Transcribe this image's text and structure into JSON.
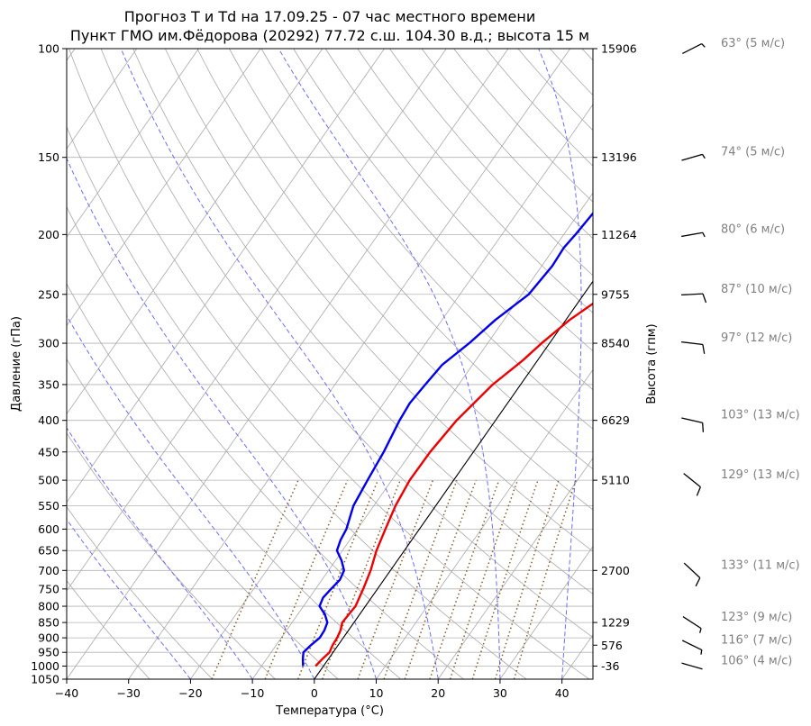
{
  "chart_data": {
    "type": "line",
    "title": "Прогноз T и Td на 17.09.25 - 07 час местного времени",
    "subtitle": "Пункт ГМО им.Фёдорова (20292) 77.72 с.ш. 104.30 в.д.; высота 15 м",
    "xlabel": "Температура (°C)",
    "ylabel": "Давление (гПа)",
    "ylabel_right": "Высота (гпм)",
    "xlim": [
      -40,
      45
    ],
    "ylim": [
      1050,
      100
    ],
    "yscale": "log",
    "x_ticks": [
      "−40",
      "−30",
      "−20",
      "−10",
      "0",
      "10",
      "20",
      "30",
      "40"
    ],
    "x_tick_values": [
      -40,
      -30,
      -20,
      -10,
      0,
      10,
      20,
      30,
      40
    ],
    "pressure_ticks": [
      100,
      150,
      200,
      250,
      300,
      350,
      400,
      450,
      500,
      550,
      600,
      650,
      700,
      750,
      800,
      850,
      900,
      950,
      1000,
      1050
    ],
    "pressure_tick_labels": [
      "100",
      "150",
      "200",
      "250",
      "300",
      "350",
      "400",
      "450",
      "500",
      "550",
      "600",
      "650",
      "700",
      "750",
      "800",
      "850",
      "900",
      "950",
      "1000",
      "1050"
    ],
    "heights": [
      {
        "p": 100,
        "label": "15906"
      },
      {
        "p": 150,
        "label": "13196"
      },
      {
        "p": 200,
        "label": "11264"
      },
      {
        "p": 250,
        "label": "9755"
      },
      {
        "p": 300,
        "label": "8540"
      },
      {
        "p": 400,
        "label": "6629"
      },
      {
        "p": 500,
        "label": "5110"
      },
      {
        "p": 700,
        "label": "2700"
      },
      {
        "p": 850,
        "label": "1229"
      },
      {
        "p": 925,
        "label": "576"
      },
      {
        "p": 1000,
        "label": "-36"
      }
    ],
    "series": [
      {
        "name": "T",
        "color": "#ee0000",
        "points": [
          [
            1000,
            -1.3
          ],
          [
            975,
            -1.0
          ],
          [
            950,
            -0.6
          ],
          [
            925,
            -0.9
          ],
          [
            900,
            -1.0
          ],
          [
            875,
            -1.3
          ],
          [
            850,
            -1.9
          ],
          [
            800,
            -1.6
          ],
          [
            750,
            -2.3
          ],
          [
            700,
            -3.2
          ],
          [
            650,
            -4.5
          ],
          [
            600,
            -5.5
          ],
          [
            550,
            -6.5
          ],
          [
            500,
            -7.1
          ],
          [
            450,
            -7.0
          ],
          [
            400,
            -6.3
          ],
          [
            350,
            -4.5
          ],
          [
            320,
            -2.4
          ],
          [
            300,
            -1.3
          ],
          [
            275,
            0.6
          ],
          [
            250,
            3.6
          ],
          [
            225,
            6.2
          ],
          [
            200,
            8.4
          ],
          [
            175,
            10.6
          ],
          [
            150,
            12.7
          ],
          [
            125,
            16.1
          ],
          [
            100,
            20.0
          ]
        ]
      },
      {
        "name": "Td",
        "color": "#0000ee",
        "points": [
          [
            1000,
            -3.3
          ],
          [
            975,
            -4.1
          ],
          [
            950,
            -4.8
          ],
          [
            925,
            -4.4
          ],
          [
            900,
            -3.8
          ],
          [
            875,
            -3.9
          ],
          [
            850,
            -4.3
          ],
          [
            825,
            -5.6
          ],
          [
            800,
            -7.4
          ],
          [
            775,
            -7.8
          ],
          [
            750,
            -7.5
          ],
          [
            725,
            -7.1
          ],
          [
            700,
            -7.5
          ],
          [
            675,
            -9.0
          ],
          [
            650,
            -10.9
          ],
          [
            625,
            -11.5
          ],
          [
            600,
            -11.8
          ],
          [
            550,
            -13.3
          ],
          [
            500,
            -13.9
          ],
          [
            450,
            -14.5
          ],
          [
            400,
            -15.5
          ],
          [
            375,
            -15.8
          ],
          [
            350,
            -15.4
          ],
          [
            325,
            -14.9
          ],
          [
            300,
            -13.0
          ],
          [
            275,
            -11.4
          ],
          [
            250,
            -8.9
          ],
          [
            225,
            -8.3
          ],
          [
            210,
            -8.5
          ],
          [
            200,
            -8.1
          ],
          [
            175,
            -7.4
          ],
          [
            150,
            -6.5
          ],
          [
            125,
            -3.8
          ],
          [
            100,
            -0.1
          ]
        ]
      }
    ],
    "wind_barbs": [
      {
        "p": 100,
        "label": "63° (5 м/с)"
      },
      {
        "p": 150,
        "label": "74° (5 м/с)"
      },
      {
        "p": 200,
        "label": "80° (6 м/с)"
      },
      {
        "p": 250,
        "label": "87° (10 м/с)"
      },
      {
        "p": 300,
        "label": "97° (12 м/с)"
      },
      {
        "p": 400,
        "label": "103° (13 м/с)"
      },
      {
        "p": 500,
        "label": "129° (13 м/с)"
      },
      {
        "p": 700,
        "label": "133° (11 м/с)"
      },
      {
        "p": 850,
        "label": "123° (9 м/с)"
      },
      {
        "p": 925,
        "label": "116° (7 м/с)"
      },
      {
        "p": 1000,
        "label": "106° (4 м/с)"
      }
    ],
    "background_lines": {
      "isotherms_color": "#a9a9a9",
      "dry_adiabats_color": "#a9a9a9",
      "moist_adiabats_color": "#6b6bff",
      "mixing_ratio_color": "#8b5a2b",
      "reference_line_color": "#000000"
    },
    "grid": true
  }
}
